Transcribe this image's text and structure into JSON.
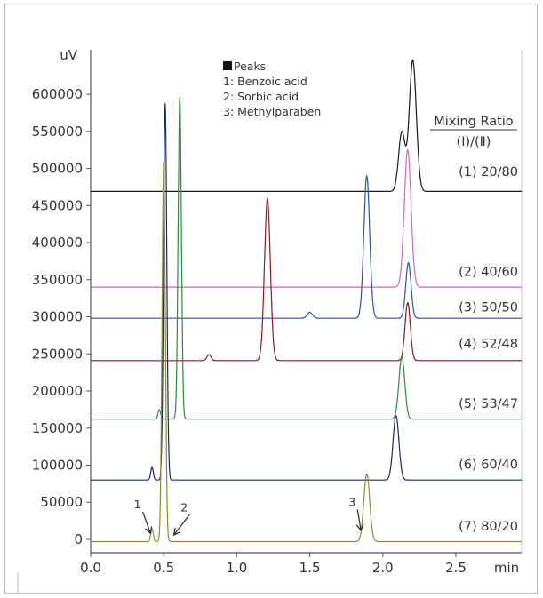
{
  "chart_data": {
    "type": "line",
    "y_unit": "uV",
    "x_unit": "min",
    "xlim": [
      0.0,
      2.95
    ],
    "ylim": [
      -18000,
      660000
    ],
    "x_ticks": [
      "0.0",
      "0.5",
      "1.0",
      "1.5",
      "2.0",
      "2.5"
    ],
    "y_ticks": [
      "0",
      "50000",
      "100000",
      "150000",
      "200000",
      "250000",
      "300000",
      "350000",
      "400000",
      "450000",
      "500000",
      "550000",
      "600000"
    ],
    "legend": {
      "title": "Peaks",
      "entries": [
        "1: Benzoic acid",
        "2: Sorbic acid",
        "3: Methylparaben"
      ]
    },
    "ratio_header": {
      "line1": "Mixing  Ratio",
      "line2": "(Ⅰ)/(Ⅱ)"
    },
    "series": [
      {
        "label": "(1) 20/80",
        "color": "#1a1a1a",
        "baseline": 469000,
        "label_y": 490000,
        "peaks": [
          {
            "x": 2.13,
            "h": 80000,
            "w": 0.022
          },
          {
            "x": 2.205,
            "h": 177000,
            "w": 0.024
          }
        ]
      },
      {
        "label": "(2) 40/60",
        "color": "#cc66cc",
        "baseline": 340000,
        "label_y": 355000,
        "peaks": [
          {
            "x": 2.17,
            "h": 185000,
            "w": 0.023
          }
        ]
      },
      {
        "label": "(3) 50/50",
        "color": "#2a55a8",
        "baseline": 298000,
        "label_y": 307000,
        "peaks": [
          {
            "x": 1.5,
            "h": 8000,
            "w": 0.018
          },
          {
            "x": 1.89,
            "h": 192000,
            "w": 0.02
          },
          {
            "x": 2.175,
            "h": 75000,
            "w": 0.018
          }
        ]
      },
      {
        "label": "(4) 52/48",
        "color": "#8b1a1a",
        "baseline": 241000,
        "label_y": 258000,
        "peaks": [
          {
            "x": 0.81,
            "h": 8000,
            "w": 0.014
          },
          {
            "x": 1.21,
            "h": 218000,
            "w": 0.02
          },
          {
            "x": 2.17,
            "h": 78000,
            "w": 0.018
          }
        ]
      },
      {
        "label": "(5) 53/47",
        "color": "#2e8b3a",
        "baseline": 162000,
        "label_y": 177000,
        "peaks": [
          {
            "x": 0.47,
            "h": 13000,
            "w": 0.009
          },
          {
            "x": 0.61,
            "h": 435000,
            "w": 0.011
          },
          {
            "x": 2.13,
            "h": 84000,
            "w": 0.02
          }
        ]
      },
      {
        "label": "(6) 60/40",
        "color": "#1a2a60",
        "baseline": 80000,
        "label_y": 95000,
        "peaks": [
          {
            "x": 0.42,
            "h": 17000,
            "w": 0.009
          },
          {
            "x": 0.51,
            "h": 508000,
            "w": 0.011
          },
          {
            "x": 2.09,
            "h": 87000,
            "w": 0.02
          }
        ]
      },
      {
        "label": "(7) 80/20",
        "color": "#8b8b3a",
        "baseline": -3000,
        "label_y": 12000,
        "peaks": [
          {
            "x": 0.42,
            "h": 17000,
            "w": 0.009
          },
          {
            "x": 0.5,
            "h": 513000,
            "w": 0.011
          },
          {
            "x": 1.89,
            "h": 91000,
            "w": 0.02
          }
        ]
      }
    ],
    "annotations": [
      {
        "label": "1",
        "x": 0.41,
        "y": 8000,
        "text_x": 0.32,
        "text_y": 42000
      },
      {
        "label": "2",
        "x": 0.57,
        "y": 6000,
        "text_x": 0.64,
        "text_y": 38000
      },
      {
        "label": "3",
        "x": 1.85,
        "y": 12000,
        "text_x": 1.79,
        "text_y": 45000
      }
    ]
  }
}
